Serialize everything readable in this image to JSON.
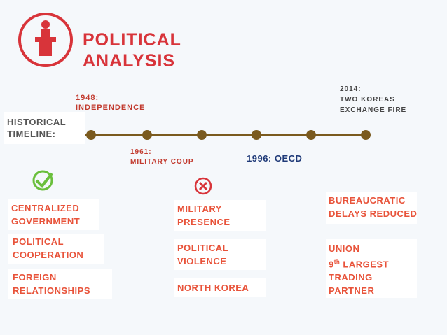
{
  "header": {
    "title": [
      "POLITICAL",
      "ANALYSIS"
    ]
  },
  "timeline": {
    "label": [
      "HISTORICAL",
      "TIMELINE:"
    ],
    "events": [
      [
        "1948:",
        "INDEPENDENCE"
      ],
      [
        "1961:",
        "MILITARY COUP"
      ],
      [
        "1996: OECD"
      ],
      [
        "2014:",
        "TWO KOREAS",
        "EXCHANGE FIRE"
      ]
    ]
  },
  "columns": [
    {
      "items": [
        [
          "CENTRALIZED",
          "GOVERNMENT"
        ],
        [
          "POLITICAL",
          "COOPERATION"
        ],
        [
          "FOREIGN",
          "RELATIONSHIPS"
        ]
      ]
    },
    {
      "items": [
        [
          "MILITARY",
          "PRESENCE"
        ],
        [
          "POLITICAL",
          "VIOLENCE"
        ],
        [
          "NORTH KOREA"
        ]
      ]
    },
    {
      "items": [
        [
          "BUREAUCRATIC",
          "DELAYS REDUCED"
        ],
        {
          "line1": "UNION",
          "number": "9",
          "suffix": "th",
          "rest": "LARGEST",
          "line3": "TRADING",
          "line4": "PARTNER"
        }
      ]
    }
  ]
}
